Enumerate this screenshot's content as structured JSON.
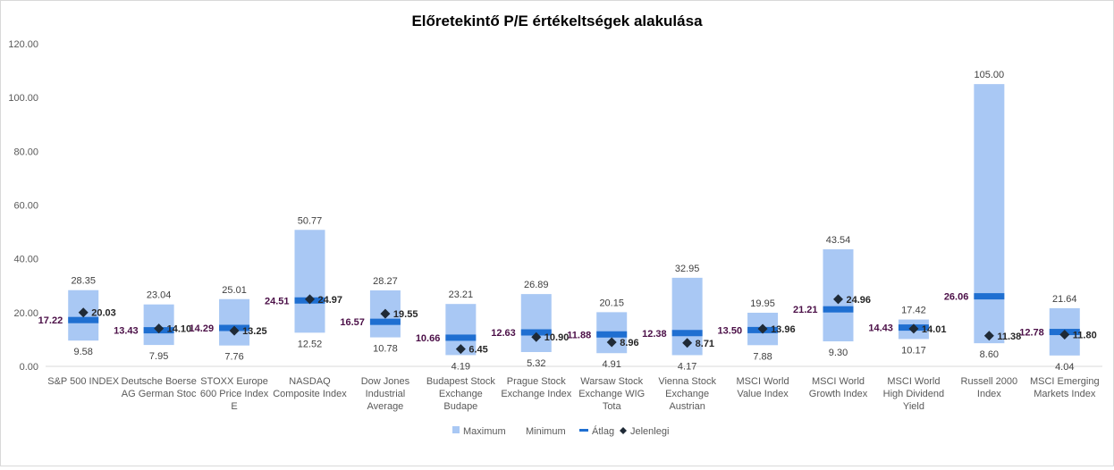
{
  "chart_data": {
    "type": "bar",
    "title": "Előretekintő P/E értékeltségek alakulása",
    "ylim": [
      0,
      120
    ],
    "yticks": [
      "0.00",
      "20.00",
      "40.00",
      "60.00",
      "80.00",
      "100.00",
      "120.00"
    ],
    "categories": [
      [
        "S&P 500 INDEX"
      ],
      [
        "Deutsche Boerse",
        "AG German Stoc"
      ],
      [
        "STOXX Europe",
        "600 Price Index",
        "E"
      ],
      [
        "NASDAQ",
        "Composite Index"
      ],
      [
        "Dow Jones",
        "Industrial",
        "Average"
      ],
      [
        "Budapest Stock",
        "Exchange",
        "Budape"
      ],
      [
        "Prague Stock",
        "Exchange Index"
      ],
      [
        "Warsaw Stock",
        "Exchange WIG",
        "Tota"
      ],
      [
        "Vienna Stock",
        "Exchange",
        "Austrian"
      ],
      [
        "MSCI World",
        "Value Index"
      ],
      [
        "MSCI World",
        "Growth Index"
      ],
      [
        "MSCI World",
        "High Dividend",
        "Yield"
      ],
      [
        "Russell 2000",
        "Index"
      ],
      [
        "MSCI Emerging",
        "Markets Index"
      ]
    ],
    "series": [
      {
        "name": "Maximum",
        "values": [
          28.35,
          23.04,
          25.01,
          50.77,
          28.27,
          23.21,
          26.89,
          20.15,
          32.95,
          19.95,
          43.54,
          17.42,
          105.0,
          21.64
        ]
      },
      {
        "name": "Minimum",
        "values": [
          9.58,
          7.95,
          7.76,
          12.52,
          10.78,
          4.19,
          5.32,
          4.91,
          4.17,
          7.88,
          9.3,
          10.17,
          8.6,
          4.04
        ]
      },
      {
        "name": "Átlag",
        "values": [
          17.22,
          13.43,
          14.29,
          24.51,
          16.57,
          10.66,
          12.63,
          11.88,
          12.38,
          13.5,
          21.21,
          14.43,
          26.06,
          12.78
        ]
      },
      {
        "name": "Jelenlegi",
        "values": [
          20.03,
          14.1,
          13.25,
          24.97,
          19.55,
          6.45,
          10.9,
          8.96,
          8.71,
          13.96,
          24.96,
          14.01,
          11.38,
          11.8
        ]
      }
    ],
    "value_labels": {
      "Maximum": [
        "28.35",
        "23.04",
        "25.01",
        "50.77",
        "28.27",
        "23.21",
        "26.89",
        "20.15",
        "32.95",
        "19.95",
        "43.54",
        "17.42",
        "105.00",
        "21.64"
      ],
      "Minimum": [
        "9.58",
        "7.95",
        "7.76",
        "12.52",
        "10.78",
        "4.19",
        "5.32",
        "4.91",
        "4.17",
        "7.88",
        "9.30",
        "10.17",
        "8.60",
        "4.04"
      ],
      "Átlag": [
        "17.22",
        "13.43",
        "14.29",
        "24.51",
        "16.57",
        "10.66",
        "12.63",
        "11.88",
        "12.38",
        "13.50",
        "21.21",
        "14.43",
        "26.06",
        "12.78"
      ],
      "Jelenlegi": [
        "20.03",
        "14.10",
        "13.25",
        "24.97",
        "19.55",
        "6.45",
        "10.90",
        "8.96",
        "8.71",
        "13.96",
        "24.96",
        "14.01",
        "11.38",
        "11.80"
      ]
    },
    "legend_position": "bottom",
    "grid": false,
    "colors": {
      "range_fill": "#a9c8f4",
      "average_bar": "#1f6fd1",
      "current_marker": "#1f2a36",
      "average_label": "#4b0f47",
      "axis_text": "#595959"
    }
  }
}
